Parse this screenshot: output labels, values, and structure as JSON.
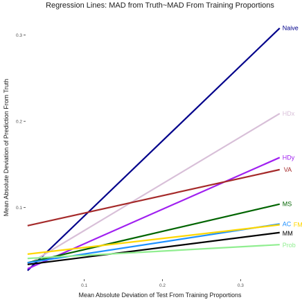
{
  "chart_data": {
    "type": "line",
    "title": "Regression Lines: MAD from Truth~MAD From Training Proportions",
    "xlabel": "Mean Absolute Deviation of Test From Training Proportions",
    "ylabel": "Mean Absolute Deviation of Prediction From Truth",
    "xlim": [
      0.025,
      0.375
    ],
    "ylim": [
      0.017,
      0.323
    ],
    "x_ticks": [
      0.1,
      0.2,
      0.3
    ],
    "x_tick_labels": [
      "0.1",
      "0.2",
      "0.3"
    ],
    "y_ticks": [
      0.1,
      0.2,
      0.3
    ],
    "y_tick_labels": [
      "0.1",
      "0.2",
      "0.3"
    ],
    "grid": false,
    "legend": "direct labels at right end of lines",
    "series": [
      {
        "name": "Naive",
        "color": "#00008b",
        "x": [
          0.0275,
          0.35
        ],
        "y": [
          0.027,
          0.308
        ]
      },
      {
        "name": "HDx",
        "color": "#d8bfd8",
        "x": [
          0.0275,
          0.35
        ],
        "y": [
          0.034,
          0.209
        ]
      },
      {
        "name": "HDy",
        "color": "#a020f0",
        "x": [
          0.0275,
          0.35
        ],
        "y": [
          0.029,
          0.158
        ]
      },
      {
        "name": "VA",
        "color": "#a52a2a",
        "x": [
          0.0275,
          0.35
        ],
        "y": [
          0.079,
          0.144
        ]
      },
      {
        "name": "MS",
        "color": "#006400",
        "x": [
          0.0275,
          0.35
        ],
        "y": [
          0.036,
          0.104
        ]
      },
      {
        "name": "AC",
        "color": "#1e90ff",
        "x": [
          0.0275,
          0.35
        ],
        "y": [
          0.036,
          0.081
        ]
      },
      {
        "name": "FM",
        "color": "#ffd700",
        "x": [
          0.0275,
          0.35
        ],
        "y": [
          0.046,
          0.08
        ]
      },
      {
        "name": "MM",
        "color": "#000000",
        "x": [
          0.0275,
          0.35
        ],
        "y": [
          0.034,
          0.071
        ]
      },
      {
        "name": "Prob",
        "color": "#90ee90",
        "x": [
          0.0275,
          0.35
        ],
        "y": [
          0.041,
          0.057
        ]
      }
    ]
  }
}
